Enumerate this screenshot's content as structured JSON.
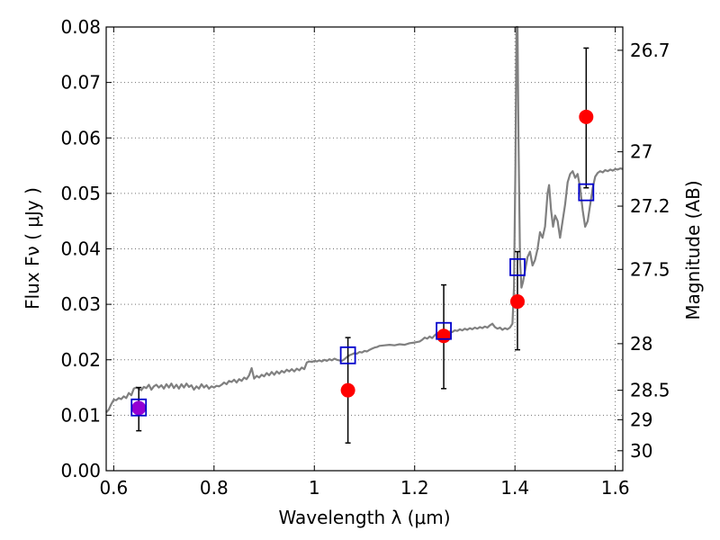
{
  "chart_data": {
    "type": "scatter",
    "xlabel": "Wavelength  λ (μm)",
    "ylabel": "Flux  Fν  ( μJy )",
    "y2label": "Magnitude (AB)",
    "xlim": [
      0.585,
      1.615
    ],
    "ylim": [
      0.0,
      0.08
    ],
    "grid": true,
    "x_ticks": [
      0.6,
      0.8,
      1.0,
      1.2,
      1.4,
      1.6
    ],
    "x_tick_labels": [
      "0.6",
      "0.8",
      "1",
      "1.2",
      "1.4",
      "1.6"
    ],
    "y_ticks": [
      0.0,
      0.01,
      0.02,
      0.03,
      0.04,
      0.05,
      0.06,
      0.07,
      0.08
    ],
    "y_tick_labels": [
      "0.00",
      "0.01",
      "0.02",
      "0.03",
      "0.04",
      "0.05",
      "0.06",
      "0.07",
      "0.08"
    ],
    "y2_ticks": [
      {
        "flux": 0.0758,
        "label": "26.7"
      },
      {
        "flux": 0.0575,
        "label": "27"
      },
      {
        "flux": 0.0477,
        "label": "27.2"
      },
      {
        "flux": 0.0363,
        "label": "27.5"
      },
      {
        "flux": 0.0229,
        "label": "28"
      },
      {
        "flux": 0.0145,
        "label": "28.5"
      },
      {
        "flux": 0.0092,
        "label": "29"
      },
      {
        "flux": 0.0036,
        "label": "30"
      }
    ],
    "colors": {
      "spectrum": "#808080",
      "observed": "#ff0000",
      "model": "#0000cc",
      "errorbar": "#000000",
      "overlap": "#9400d3"
    },
    "series": [
      {
        "kind": "line",
        "points": [
          [
            0.585,
            0.0105
          ],
          [
            0.59,
            0.011
          ],
          [
            0.595,
            0.012
          ],
          [
            0.6,
            0.0128
          ],
          [
            0.605,
            0.0127
          ],
          [
            0.61,
            0.0131
          ],
          [
            0.615,
            0.0129
          ],
          [
            0.62,
            0.0134
          ],
          [
            0.625,
            0.0131
          ],
          [
            0.63,
            0.014
          ],
          [
            0.635,
            0.0136
          ],
          [
            0.64,
            0.0148
          ],
          [
            0.645,
            0.015
          ],
          [
            0.65,
            0.0148
          ],
          [
            0.655,
            0.0145
          ],
          [
            0.66,
            0.0151
          ],
          [
            0.665,
            0.0149
          ],
          [
            0.67,
            0.0155
          ],
          [
            0.675,
            0.0146
          ],
          [
            0.68,
            0.0152
          ],
          [
            0.685,
            0.0155
          ],
          [
            0.69,
            0.015
          ],
          [
            0.695,
            0.0154
          ],
          [
            0.7,
            0.0148
          ],
          [
            0.705,
            0.0156
          ],
          [
            0.71,
            0.015
          ],
          [
            0.715,
            0.0157
          ],
          [
            0.72,
            0.0149
          ],
          [
            0.725,
            0.0155
          ],
          [
            0.73,
            0.0148
          ],
          [
            0.735,
            0.0156
          ],
          [
            0.74,
            0.015
          ],
          [
            0.745,
            0.0157
          ],
          [
            0.75,
            0.0151
          ],
          [
            0.755,
            0.0154
          ],
          [
            0.76,
            0.0146
          ],
          [
            0.765,
            0.0152
          ],
          [
            0.77,
            0.0148
          ],
          [
            0.775,
            0.0156
          ],
          [
            0.78,
            0.015
          ],
          [
            0.785,
            0.0154
          ],
          [
            0.79,
            0.0148
          ],
          [
            0.795,
            0.0152
          ],
          [
            0.8,
            0.015
          ],
          [
            0.805,
            0.0153
          ],
          [
            0.81,
            0.0152
          ],
          [
            0.815,
            0.0155
          ],
          [
            0.82,
            0.0159
          ],
          [
            0.825,
            0.0156
          ],
          [
            0.83,
            0.0162
          ],
          [
            0.835,
            0.016
          ],
          [
            0.84,
            0.0164
          ],
          [
            0.845,
            0.0159
          ],
          [
            0.85,
            0.0165
          ],
          [
            0.855,
            0.0162
          ],
          [
            0.86,
            0.0168
          ],
          [
            0.865,
            0.0165
          ],
          [
            0.87,
            0.0172
          ],
          [
            0.875,
            0.0185
          ],
          [
            0.88,
            0.0166
          ],
          [
            0.885,
            0.0171
          ],
          [
            0.89,
            0.0168
          ],
          [
            0.895,
            0.0173
          ],
          [
            0.9,
            0.017
          ],
          [
            0.905,
            0.0176
          ],
          [
            0.91,
            0.0172
          ],
          [
            0.915,
            0.0178
          ],
          [
            0.92,
            0.0173
          ],
          [
            0.925,
            0.0179
          ],
          [
            0.93,
            0.0175
          ],
          [
            0.935,
            0.018
          ],
          [
            0.94,
            0.0177
          ],
          [
            0.945,
            0.0182
          ],
          [
            0.95,
            0.0179
          ],
          [
            0.955,
            0.0183
          ],
          [
            0.96,
            0.0179
          ],
          [
            0.965,
            0.0184
          ],
          [
            0.97,
            0.0181
          ],
          [
            0.975,
            0.0186
          ],
          [
            0.98,
            0.0183
          ],
          [
            0.985,
            0.0195
          ],
          [
            0.99,
            0.0197
          ],
          [
            0.995,
            0.0196
          ],
          [
            1.0,
            0.0198
          ],
          [
            1.005,
            0.0197
          ],
          [
            1.01,
            0.0199
          ],
          [
            1.015,
            0.0197
          ],
          [
            1.02,
            0.02
          ],
          [
            1.025,
            0.0198
          ],
          [
            1.03,
            0.0201
          ],
          [
            1.035,
            0.0199
          ],
          [
            1.04,
            0.0202
          ],
          [
            1.045,
            0.02
          ],
          [
            1.05,
            0.0199
          ],
          [
            1.055,
            0.0198
          ],
          [
            1.06,
            0.0201
          ],
          [
            1.065,
            0.0205
          ],
          [
            1.07,
            0.0208
          ],
          [
            1.075,
            0.021
          ],
          [
            1.08,
            0.0212
          ],
          [
            1.085,
            0.0211
          ],
          [
            1.09,
            0.0214
          ],
          [
            1.095,
            0.0213
          ],
          [
            1.1,
            0.0216
          ],
          [
            1.105,
            0.0215
          ],
          [
            1.11,
            0.0218
          ],
          [
            1.115,
            0.022
          ],
          [
            1.12,
            0.0222
          ],
          [
            1.125,
            0.0223
          ],
          [
            1.13,
            0.0225
          ],
          [
            1.14,
            0.0226
          ],
          [
            1.15,
            0.0227
          ],
          [
            1.16,
            0.0226
          ],
          [
            1.17,
            0.0228
          ],
          [
            1.18,
            0.0227
          ],
          [
            1.19,
            0.023
          ],
          [
            1.2,
            0.0231
          ],
          [
            1.21,
            0.0233
          ],
          [
            1.215,
            0.0236
          ],
          [
            1.22,
            0.024
          ],
          [
            1.225,
            0.0238
          ],
          [
            1.23,
            0.0242
          ],
          [
            1.235,
            0.0239
          ],
          [
            1.24,
            0.0244
          ],
          [
            1.245,
            0.0248
          ],
          [
            1.25,
            0.0247
          ],
          [
            1.255,
            0.0246
          ],
          [
            1.26,
            0.0249
          ],
          [
            1.265,
            0.0248
          ],
          [
            1.27,
            0.0251
          ],
          [
            1.275,
            0.025
          ],
          [
            1.28,
            0.0253
          ],
          [
            1.285,
            0.0252
          ],
          [
            1.29,
            0.0255
          ],
          [
            1.295,
            0.0253
          ],
          [
            1.3,
            0.0256
          ],
          [
            1.305,
            0.0254
          ],
          [
            1.31,
            0.0257
          ],
          [
            1.315,
            0.0255
          ],
          [
            1.32,
            0.0258
          ],
          [
            1.325,
            0.0256
          ],
          [
            1.33,
            0.0259
          ],
          [
            1.335,
            0.0257
          ],
          [
            1.34,
            0.026
          ],
          [
            1.345,
            0.0258
          ],
          [
            1.35,
            0.0262
          ],
          [
            1.355,
            0.0265
          ],
          [
            1.36,
            0.0259
          ],
          [
            1.365,
            0.0256
          ],
          [
            1.37,
            0.0258
          ],
          [
            1.375,
            0.0254
          ],
          [
            1.38,
            0.0257
          ],
          [
            1.385,
            0.0255
          ],
          [
            1.39,
            0.0258
          ],
          [
            1.395,
            0.0265
          ],
          [
            1.398,
            0.033
          ],
          [
            1.401,
            0.055
          ],
          [
            1.403,
            0.08
          ],
          [
            1.405,
            0.08
          ],
          [
            1.407,
            0.06
          ],
          [
            1.41,
            0.038
          ],
          [
            1.413,
            0.033
          ],
          [
            1.416,
            0.034
          ],
          [
            1.42,
            0.036
          ],
          [
            1.425,
            0.0385
          ],
          [
            1.43,
            0.0395
          ],
          [
            1.435,
            0.037
          ],
          [
            1.44,
            0.038
          ],
          [
            1.445,
            0.04
          ],
          [
            1.45,
            0.043
          ],
          [
            1.455,
            0.042
          ],
          [
            1.46,
            0.044
          ],
          [
            1.465,
            0.05
          ],
          [
            1.468,
            0.0515
          ],
          [
            1.472,
            0.047
          ],
          [
            1.476,
            0.044
          ],
          [
            1.48,
            0.046
          ],
          [
            1.485,
            0.045
          ],
          [
            1.49,
            0.042
          ],
          [
            1.495,
            0.045
          ],
          [
            1.5,
            0.048
          ],
          [
            1.505,
            0.052
          ],
          [
            1.51,
            0.0535
          ],
          [
            1.515,
            0.054
          ],
          [
            1.52,
            0.0528
          ],
          [
            1.525,
            0.0535
          ],
          [
            1.53,
            0.051
          ],
          [
            1.535,
            0.047
          ],
          [
            1.54,
            0.044
          ],
          [
            1.545,
            0.045
          ],
          [
            1.55,
            0.048
          ],
          [
            1.555,
            0.051
          ],
          [
            1.56,
            0.053
          ],
          [
            1.565,
            0.0537
          ],
          [
            1.57,
            0.054
          ],
          [
            1.575,
            0.0538
          ],
          [
            1.58,
            0.0542
          ],
          [
            1.585,
            0.054
          ],
          [
            1.59,
            0.0543
          ],
          [
            1.595,
            0.0541
          ],
          [
            1.6,
            0.0544
          ],
          [
            1.605,
            0.0543
          ],
          [
            1.61,
            0.0545
          ],
          [
            1.615,
            0.0544
          ]
        ]
      },
      {
        "kind": "points-with-errorbars",
        "marker": "circle",
        "points": [
          {
            "x": 0.65,
            "y": 0.0113,
            "ylow": 0.0072,
            "yhigh": 0.015
          },
          {
            "x": 1.067,
            "y": 0.0145,
            "ylow": 0.005,
            "yhigh": 0.024
          },
          {
            "x": 1.258,
            "y": 0.0243,
            "ylow": 0.0148,
            "yhigh": 0.0335
          },
          {
            "x": 1.405,
            "y": 0.0305,
            "ylow": 0.0218,
            "yhigh": 0.0395
          },
          {
            "x": 1.542,
            "y": 0.0638,
            "ylow": 0.051,
            "yhigh": 0.0762
          }
        ]
      },
      {
        "kind": "points",
        "marker": "open-square",
        "points": [
          {
            "x": 0.65,
            "y": 0.0114
          },
          {
            "x": 1.067,
            "y": 0.0208
          },
          {
            "x": 1.258,
            "y": 0.0252
          },
          {
            "x": 1.405,
            "y": 0.0367
          },
          {
            "x": 1.542,
            "y": 0.0502
          }
        ]
      }
    ]
  }
}
